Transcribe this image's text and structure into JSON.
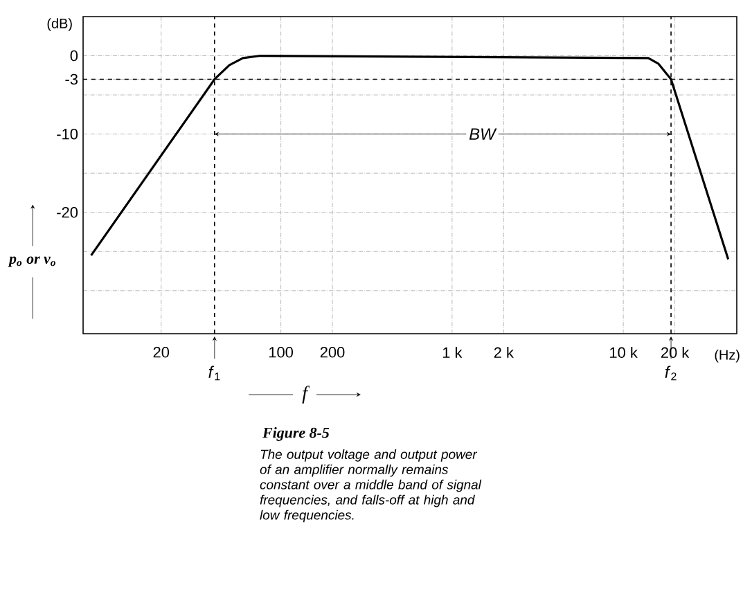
{
  "chart_data": {
    "type": "line",
    "title": "Figure 8-5",
    "subtitle": "The output voltage and output power of an amplifier normally remains constant over a middle band of signal frequencies, and falls-off at high and low frequencies.",
    "xlabel": "f",
    "ylabel": "p$_{o}$ or v$_{o}$",
    "log": "x",
    "grid": true,
    "marker": "none",
    "line_style": "solid",
    "xlim": [
      7,
      46000
    ],
    "ylim": [
      -35.5,
      5
    ],
    "xticks": [
      20,
      100,
      200,
      {
        "value": 1000,
        "label": "1 k"
      },
      {
        "value": 2000,
        "label": "2 k"
      },
      {
        "value": 10000,
        "label": "10 k"
      },
      {
        "value": 20000,
        "label": "20 k"
      }
    ],
    "yticks": [
      0,
      -3,
      {
        "value": -5,
        "label": null
      },
      -10,
      {
        "value": -15,
        "label": null
      },
      -20,
      {
        "value": -25,
        "label": null
      },
      {
        "value": -30,
        "label": null
      }
    ],
    "series": [
      {
        "color": "#000000",
        "x": [
          7.8,
          41,
          50,
          60,
          76,
          14000,
          16000,
          19000,
          41000
        ],
        "values": [
          -25.5,
          -3,
          -1.2,
          -0.3,
          0,
          -0.3,
          -1,
          -3,
          -26
        ]
      }
    ],
    "ref_lines": [
      {
        "axis": "y",
        "value": -3,
        "line_style": "dashed"
      },
      {
        "axis": "x",
        "value": 41,
        "label": "*f*$_{1}$",
        "line_style": "dashed"
      },
      {
        "axis": "x",
        "value": 19000,
        "label": "*f*$_{2}$",
        "line_style": "dashed"
      }
    ],
    "annotations": [
      "(dB)",
      "(Hz)",
      {
        "text": "BW",
        "x": 1500,
        "y": -10
      }
    ]
  }
}
